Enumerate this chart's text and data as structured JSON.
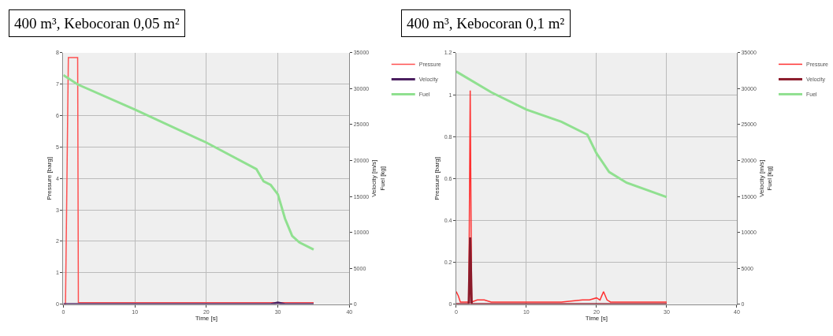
{
  "chart_data": [
    {
      "type": "line",
      "title": "400 m³, Kebocoran 0,05 m²",
      "xlabel": "Time [s]",
      "ylabel": "Pressure [barg]",
      "y2label": "Velocity [m/s]\nFuel [kg]",
      "xlim": [
        0,
        40
      ],
      "xticks": [
        0,
        10,
        20,
        30,
        40
      ],
      "ylim": [
        0,
        8
      ],
      "yticks": [
        0,
        1,
        2,
        3,
        4,
        5,
        6,
        7,
        8
      ],
      "y2lim": [
        0,
        35000
      ],
      "y2ticks": [
        0,
        5000,
        10000,
        15000,
        20000,
        25000,
        30000,
        35000
      ],
      "grid": true,
      "legend": "top right",
      "series": [
        {
          "name": "Pressure",
          "color": "#ff5050",
          "axis": "y",
          "x": [
            0,
            0.3,
            0.7,
            2.0,
            2.1,
            3,
            10,
            20,
            30,
            35
          ],
          "values": [
            0,
            0,
            7.85,
            7.85,
            0.05,
            0.05,
            0.05,
            0.05,
            0.05,
            0.05
          ]
        },
        {
          "name": "Velocity",
          "color": "#4b2060",
          "axis": "y2",
          "x": [
            0,
            2,
            29,
            30,
            31,
            35
          ],
          "values": [
            0,
            0,
            0,
            200,
            0,
            0
          ]
        },
        {
          "name": "Fuel",
          "color": "#90e090",
          "axis": "y2",
          "x": [
            0,
            2,
            10,
            20,
            27,
            28,
            29,
            30,
            31,
            32,
            33,
            35
          ],
          "values": [
            31900,
            30600,
            27100,
            22500,
            18800,
            17100,
            16600,
            15300,
            11900,
            9500,
            8600,
            7600
          ]
        }
      ]
    },
    {
      "type": "line",
      "title": "400 m³, Kebocoran 0,1 m²",
      "xlabel": "Time [s]",
      "ylabel": "Pressure [barg]",
      "y2label": "Velocity [m/s]\nFuel [kg]",
      "xlim": [
        0,
        40
      ],
      "xticks": [
        0,
        10,
        20,
        30,
        40
      ],
      "ylim": [
        0,
        1.2
      ],
      "yticks": [
        0,
        0.2,
        0.4,
        0.6,
        0.8,
        1,
        1.2
      ],
      "y2lim": [
        0,
        35000
      ],
      "y2ticks": [
        0,
        5000,
        10000,
        15000,
        20000,
        25000,
        30000,
        35000
      ],
      "grid": true,
      "legend": "top right",
      "series": [
        {
          "name": "Pressure",
          "color": "#ff3030",
          "axis": "y",
          "x": [
            0,
            0.3,
            0.6,
            1,
            1.8,
            2,
            2.2,
            3,
            4,
            5,
            8,
            10,
            15,
            18,
            19,
            20,
            20.5,
            21,
            21.5,
            22,
            25,
            30
          ],
          "values": [
            0.06,
            0.04,
            0.01,
            0.01,
            0.01,
            1.02,
            0.01,
            0.02,
            0.02,
            0.01,
            0.01,
            0.01,
            0.01,
            0.02,
            0.02,
            0.03,
            0.02,
            0.06,
            0.02,
            0.01,
            0.01,
            0.01
          ]
        },
        {
          "name": "Velocity",
          "color": "#8b1a2a",
          "axis": "y2",
          "x": [
            0,
            1.8,
            2,
            2.2,
            10,
            20,
            30
          ],
          "values": [
            0,
            0,
            9300,
            0,
            0,
            0,
            0
          ]
        },
        {
          "name": "Fuel",
          "color": "#90e090",
          "axis": "y2",
          "x": [
            0,
            5,
            10,
            15,
            18.7,
            20,
            21.8,
            24.3,
            30
          ],
          "values": [
            32400,
            29500,
            27100,
            25400,
            23600,
            21000,
            18400,
            16900,
            14900
          ]
        }
      ]
    }
  ]
}
